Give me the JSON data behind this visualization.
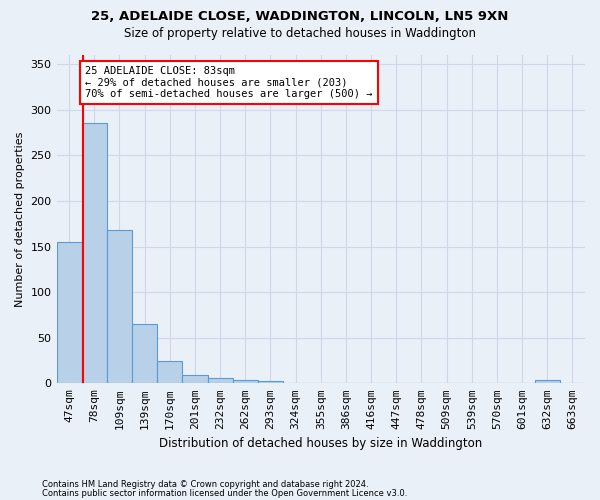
{
  "title_line1": "25, ADELAIDE CLOSE, WADDINGTON, LINCOLN, LN5 9XN",
  "title_line2": "Size of property relative to detached houses in Waddington",
  "xlabel": "Distribution of detached houses by size in Waddington",
  "ylabel": "Number of detached properties",
  "all_labels": [
    "47sqm",
    "78sqm",
    "109sqm",
    "139sqm",
    "170sqm",
    "201sqm",
    "232sqm",
    "262sqm",
    "293sqm",
    "324sqm",
    "355sqm",
    "386sqm",
    "416sqm",
    "447sqm",
    "478sqm",
    "509sqm",
    "539sqm",
    "570sqm",
    "601sqm",
    "632sqm",
    "663sqm"
  ],
  "all_values": [
    155,
    285,
    168,
    65,
    25,
    9,
    6,
    4,
    3,
    0,
    0,
    0,
    0,
    0,
    0,
    0,
    0,
    0,
    0,
    4,
    0
  ],
  "bar_color": "#b8d0e8",
  "bar_edge_color": "#5b9bd5",
  "marker_bar_index": 1,
  "ylim": [
    0,
    360
  ],
  "yticks": [
    0,
    50,
    100,
    150,
    200,
    250,
    300,
    350
  ],
  "annotation_box_text": "25 ADELAIDE CLOSE: 83sqm\n← 29% of detached houses are smaller (203)\n70% of semi-detached houses are larger (500) →",
  "footnote1": "Contains HM Land Registry data © Crown copyright and database right 2024.",
  "footnote2": "Contains public sector information licensed under the Open Government Licence v3.0.",
  "grid_color": "#d0d8e8",
  "bg_color": "#eaf0f8"
}
